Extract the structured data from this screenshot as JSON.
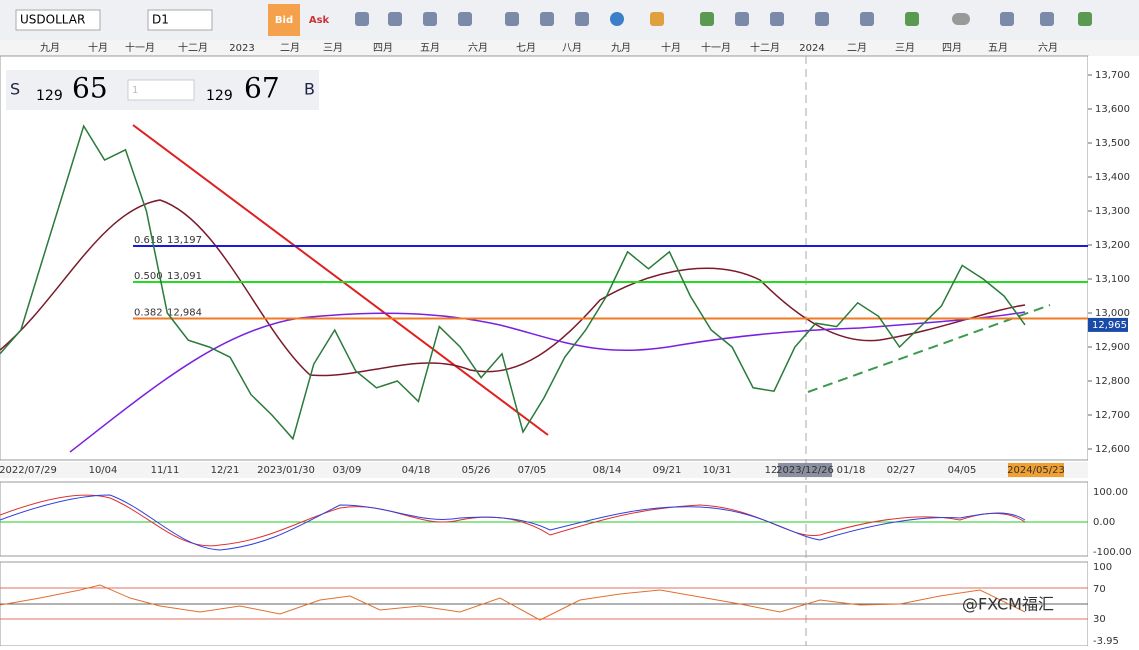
{
  "toolbar": {
    "symbol": "USDOLLAR",
    "timeframe": "D1",
    "bid": "Bid",
    "ask": "Ask"
  },
  "quote": {
    "sell_label": "S",
    "sell_big": "129",
    "sell_pips": "65",
    "lot": "1",
    "buy_big": "129",
    "buy_pips": "67",
    "buy_label": "B"
  },
  "top_axis": [
    "九月",
    "十月",
    "十一月",
    "十二月",
    "2023",
    "二月",
    "三月",
    "四月",
    "五月",
    "六月",
    "七月",
    "八月",
    "九月",
    "十月",
    "十一月",
    "十二月",
    "2024",
    "二月",
    "三月",
    "四月",
    "五月",
    "六月"
  ],
  "bottom_axis": [
    "2022/07/29",
    "10/04",
    "11/11",
    "12/21",
    "2023/01/30",
    "03/09",
    "04/18",
    "05/26",
    "07/05",
    "08/14",
    "09/21",
    "10/31",
    "12",
    "2023/12/26",
    "01/18",
    "02/27",
    "04/05",
    "2024/05/23"
  ],
  "price_axis": [
    {
      "value": 13700,
      "label": "13,700"
    },
    {
      "value": 13600,
      "label": "13,600"
    },
    {
      "value": 13500,
      "label": "13,500"
    },
    {
      "value": 13400,
      "label": "13,400"
    },
    {
      "value": 13300,
      "label": "13,300"
    },
    {
      "value": 13200,
      "label": "13,200"
    },
    {
      "value": 13100,
      "label": "13,100"
    },
    {
      "value": 13000,
      "label": "13,000"
    },
    {
      "value": 12900,
      "label": "12,900"
    },
    {
      "value": 12800,
      "label": "12,800"
    },
    {
      "value": 12700,
      "label": "12,700"
    },
    {
      "value": 12600,
      "label": "12,600"
    }
  ],
  "current_price": {
    "value": 12965,
    "label": "12,965"
  },
  "fib": [
    {
      "ratio": "0.618",
      "price": {
        "value": 13197,
        "label": "13,197"
      },
      "color": "#1a1adc"
    },
    {
      "ratio": "0.500",
      "price": {
        "value": 13091,
        "label": "13,091"
      },
      "color": "#22dd22"
    },
    {
      "ratio": "0.382",
      "price": {
        "value": 12984,
        "label": "12,984"
      },
      "color": "#f07a20"
    }
  ],
  "closes": [
    12880,
    12950,
    13150,
    13350,
    13550,
    13450,
    13480,
    13300,
    13000,
    12920,
    12900,
    12870,
    12760,
    12700,
    12630,
    12850,
    12950,
    12830,
    12780,
    12800,
    12740,
    12960,
    12900,
    12810,
    12880,
    12650,
    12750,
    12870,
    12950,
    13050,
    13180,
    13130,
    13180,
    13050,
    12950,
    12900,
    12780,
    12770,
    12900,
    12970,
    12960,
    13030,
    12990,
    12900,
    12960,
    13020,
    13140,
    13100,
    13050,
    12965
  ],
  "macd_axis": [
    "100.00",
    "0.00",
    "-100.00"
  ],
  "rsi_axis": [
    "100",
    "70",
    "30",
    "-3.95"
  ],
  "watermark": "@FXCM福汇"
}
